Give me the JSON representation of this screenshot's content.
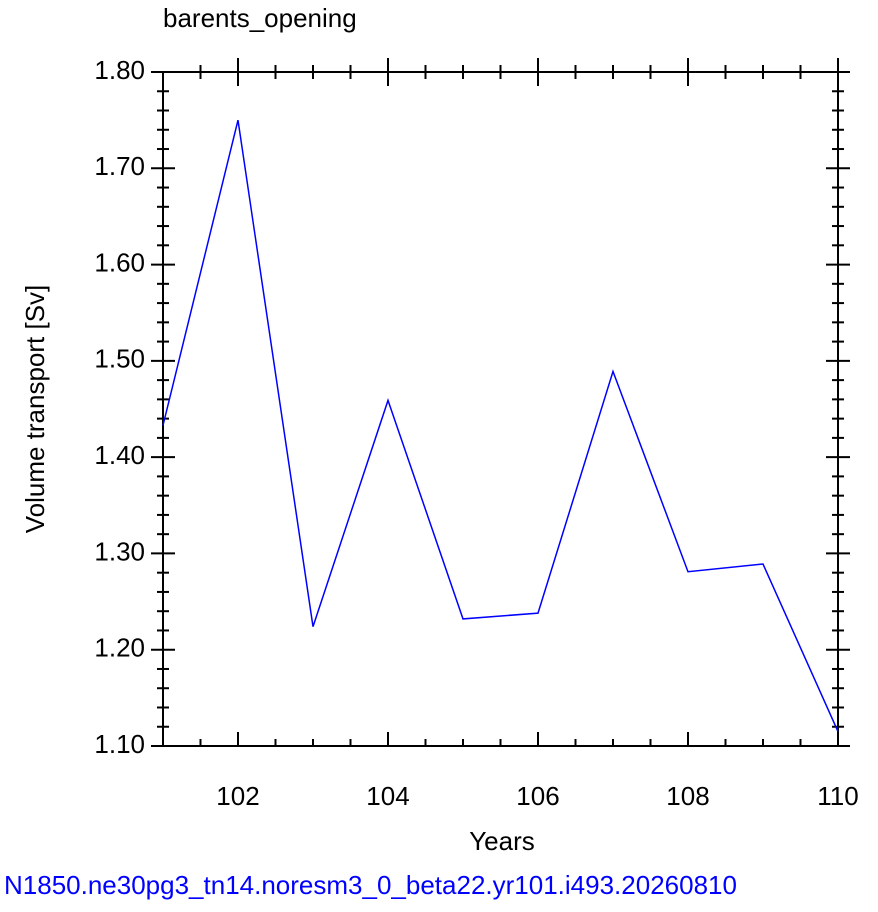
{
  "chart_data": {
    "type": "line",
    "title": "barents_opening",
    "x_label": "Years",
    "y_label": "Volume transport [Sv]",
    "footer": "N1850.ne30pg3_tn14.noresm3_0_beta22.yr101.i493.20260810",
    "footer_color": "#0000ff",
    "x": [
      101,
      102,
      103,
      104,
      105,
      106,
      107,
      108,
      109,
      110
    ],
    "series": [
      {
        "name": "barents_opening",
        "color": "#0000ff",
        "values": [
          1.433,
          1.75,
          1.224,
          1.459,
          1.232,
          1.238,
          1.489,
          1.281,
          1.289,
          1.115
        ]
      }
    ],
    "xlim": [
      101,
      110
    ],
    "xticks": [
      102,
      104,
      106,
      108,
      110
    ],
    "xminorticks": [
      101.5,
      102.5,
      103,
      103.5,
      104.5,
      105,
      105.5,
      106.5,
      107,
      107.5,
      108.5,
      109,
      109.5
    ],
    "ylim": [
      1.1,
      1.8
    ],
    "yticks": [
      {
        "value": 1.1,
        "label": "1.10"
      },
      {
        "value": 1.2,
        "label": "1.20"
      },
      {
        "value": 1.3,
        "label": "1.30"
      },
      {
        "value": 1.4,
        "label": "1.40"
      },
      {
        "value": 1.5,
        "label": "1.50"
      },
      {
        "value": 1.6,
        "label": "1.60"
      },
      {
        "value": 1.7,
        "label": "1.70"
      },
      {
        "value": 1.8,
        "label": "1.80"
      }
    ],
    "yminorticks": [
      1.12,
      1.14,
      1.16,
      1.18,
      1.22,
      1.24,
      1.26,
      1.28,
      1.32,
      1.34,
      1.36,
      1.38,
      1.42,
      1.44,
      1.46,
      1.48,
      1.52,
      1.54,
      1.56,
      1.58,
      1.62,
      1.64,
      1.66,
      1.68,
      1.72,
      1.74,
      1.76,
      1.78
    ],
    "grid": false
  }
}
